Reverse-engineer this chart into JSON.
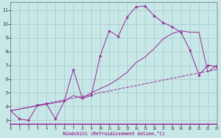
{
  "xlabel": "Windchill (Refroidissement éolien,°C)",
  "xlim": [
    0,
    23
  ],
  "ylim": [
    2.7,
    11.6
  ],
  "xticks": [
    0,
    1,
    2,
    3,
    4,
    5,
    6,
    7,
    8,
    9,
    10,
    11,
    12,
    13,
    14,
    15,
    16,
    17,
    18,
    19,
    20,
    21,
    22,
    23
  ],
  "yticks": [
    3,
    4,
    5,
    6,
    7,
    8,
    9,
    10,
    11
  ],
  "bg_color": "#c8e8e8",
  "grid_color": "#a8cccc",
  "line_color": "#993399",
  "spine_color": "#993399",
  "series1_x": [
    0,
    1,
    2,
    3,
    4,
    5,
    6,
    7,
    8,
    9,
    10,
    11,
    12,
    13,
    14,
    15,
    16,
    17,
    18,
    19,
    20,
    21,
    22,
    23
  ],
  "series1_y": [
    3.7,
    3.1,
    3.0,
    4.1,
    4.2,
    3.1,
    4.4,
    6.7,
    4.6,
    4.8,
    7.7,
    9.5,
    9.1,
    10.5,
    11.25,
    11.3,
    10.6,
    10.1,
    9.8,
    9.4,
    8.1,
    6.3,
    7.0,
    6.9
  ],
  "series2_x": [
    0,
    6,
    7,
    8,
    9,
    10,
    11,
    12,
    13,
    14,
    15,
    16,
    17,
    18,
    19,
    20,
    21,
    22,
    23
  ],
  "series2_y": [
    3.7,
    4.4,
    4.8,
    4.6,
    5.0,
    5.3,
    5.6,
    6.0,
    6.5,
    7.2,
    7.6,
    8.2,
    8.9,
    9.3,
    9.5,
    9.4,
    9.4,
    6.5,
    7.0
  ],
  "series3_x": [
    0,
    23
  ],
  "series3_y": [
    3.7,
    6.7
  ]
}
